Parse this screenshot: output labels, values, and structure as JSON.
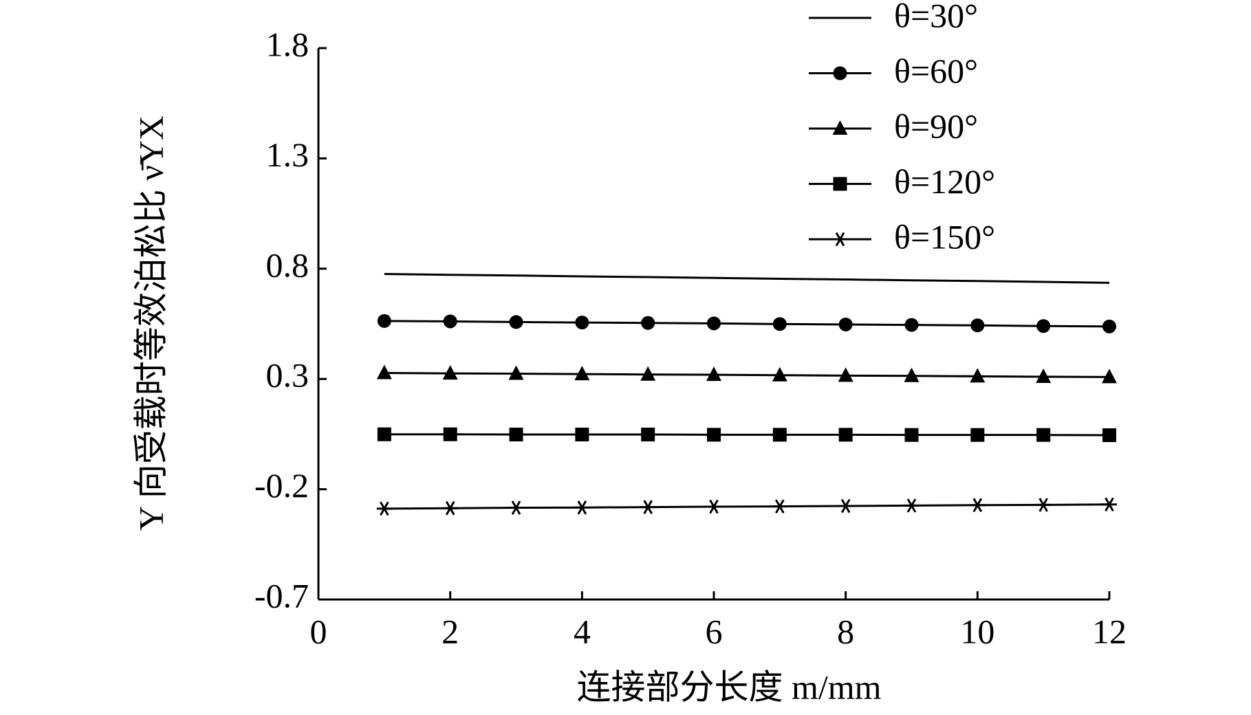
{
  "chart_data": {
    "type": "line",
    "x_label": "连接部分长度 m/mm",
    "y_label": "Y 向受载时等效泊松比 ν̄YX",
    "x": [
      1,
      2,
      3,
      4,
      5,
      6,
      7,
      8,
      9,
      10,
      11,
      12
    ],
    "series": [
      {
        "name": "θ=30°",
        "color": "#000000",
        "marker": "none",
        "values": [
          0.776,
          0.772,
          0.769,
          0.765,
          0.762,
          0.758,
          0.754,
          0.751,
          0.747,
          0.744,
          0.74,
          0.736
        ]
      },
      {
        "name": "θ=60°",
        "color": "#000000",
        "marker": "circle",
        "values": [
          0.563,
          0.561,
          0.558,
          0.556,
          0.554,
          0.552,
          0.549,
          0.547,
          0.545,
          0.543,
          0.54,
          0.538
        ]
      },
      {
        "name": "θ=90°",
        "color": "#000000",
        "marker": "triangle",
        "values": [
          0.327,
          0.325,
          0.324,
          0.322,
          0.32,
          0.319,
          0.317,
          0.315,
          0.314,
          0.312,
          0.31,
          0.309
        ]
      },
      {
        "name": "θ=120°",
        "color": "#000000",
        "marker": "square",
        "values": [
          0.049,
          0.049,
          0.048,
          0.048,
          0.048,
          0.047,
          0.047,
          0.047,
          0.046,
          0.046,
          0.046,
          0.045
        ]
      },
      {
        "name": "θ=150°",
        "color": "#000000",
        "marker": "asterisk",
        "values": [
          -0.288,
          -0.286,
          -0.284,
          -0.283,
          -0.281,
          -0.279,
          -0.278,
          -0.276,
          -0.274,
          -0.272,
          -0.271,
          -0.269
        ]
      }
    ],
    "xlim": [
      0,
      12
    ],
    "xticks": [
      0,
      2,
      4,
      6,
      8,
      10,
      12
    ],
    "ylim": [
      -0.7,
      1.8
    ],
    "yticks": [
      -0.7,
      -0.2,
      0.3,
      0.8,
      1.3,
      1.8
    ],
    "grid": false,
    "legend": "top-right"
  }
}
